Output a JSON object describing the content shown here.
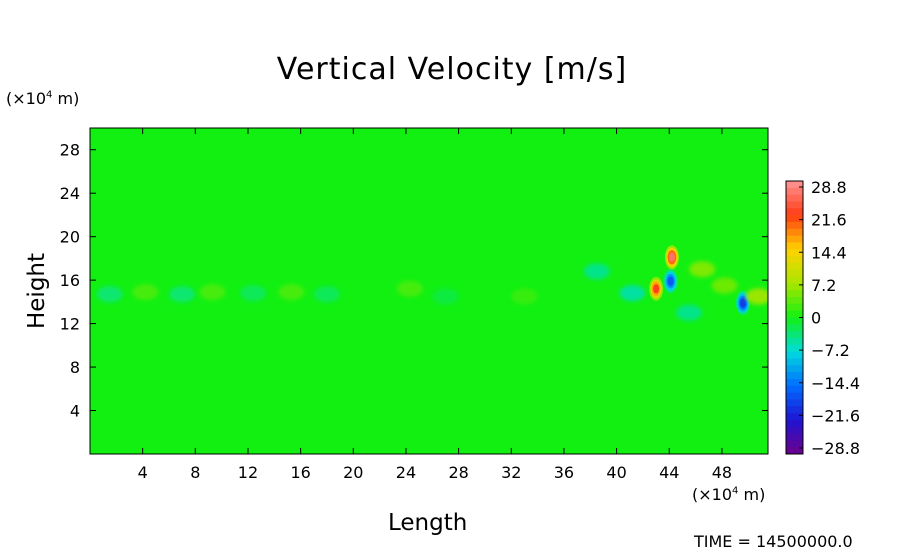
{
  "chart_data": {
    "type": "heatmap",
    "title": "Vertical Velocity [m/s]",
    "xlabel": "Length",
    "ylabel": "Height",
    "x_unit": "(×10",
    "x_unit_exp": "4",
    "x_unit_tail": " m)",
    "y_unit": "(×10",
    "y_unit_exp": "4",
    "y_unit_tail": " m)",
    "xlim": [
      0,
      51.5
    ],
    "ylim": [
      0,
      30
    ],
    "x_ticks": [
      "4",
      "8",
      "12",
      "16",
      "20",
      "24",
      "28",
      "32",
      "36",
      "40",
      "44",
      "48"
    ],
    "y_ticks": [
      "4",
      "8",
      "12",
      "16",
      "20",
      "24",
      "28"
    ],
    "colorbar": {
      "range": [
        -28.8,
        28.8
      ],
      "labels": [
        "28.8",
        "21.6",
        "14.4",
        "7.2",
        "0",
        "−7.2",
        "−14.4",
        "−21.6",
        "−28.8"
      ]
    },
    "background_value": 0,
    "features": [
      {
        "x": 44.2,
        "y": 18.1,
        "value": 26
      },
      {
        "x": 43.0,
        "y": 15.2,
        "value": 22
      },
      {
        "x": 44.1,
        "y": 15.9,
        "value": -16
      },
      {
        "x": 49.6,
        "y": 13.9,
        "value": -18
      },
      {
        "x": 41.2,
        "y": 14.8,
        "value": -6
      },
      {
        "x": 46.5,
        "y": 17.0,
        "value": 6
      },
      {
        "x": 48.2,
        "y": 15.5,
        "value": 5
      },
      {
        "x": 50.8,
        "y": 14.5,
        "value": 8
      },
      {
        "x": 38.5,
        "y": 16.8,
        "value": -5
      },
      {
        "x": 45.5,
        "y": 13.0,
        "value": -5
      },
      {
        "x": 1.5,
        "y": 14.7,
        "value": -4
      },
      {
        "x": 4.2,
        "y": 14.9,
        "value": 3
      },
      {
        "x": 7.0,
        "y": 14.7,
        "value": -4
      },
      {
        "x": 9.3,
        "y": 14.9,
        "value": 3
      },
      {
        "x": 12.4,
        "y": 14.8,
        "value": -3
      },
      {
        "x": 15.3,
        "y": 14.9,
        "value": 3
      },
      {
        "x": 18.0,
        "y": 14.7,
        "value": -3
      },
      {
        "x": 24.3,
        "y": 15.2,
        "value": 3
      },
      {
        "x": 27.0,
        "y": 14.5,
        "value": -2
      },
      {
        "x": 33.0,
        "y": 14.5,
        "value": 2
      }
    ]
  },
  "footer": {
    "label": "TIME = ",
    "value": "14500000.0"
  }
}
